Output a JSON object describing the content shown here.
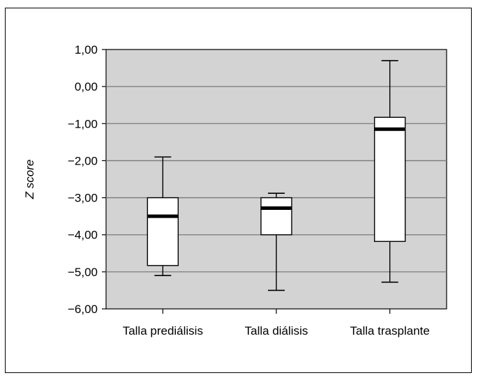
{
  "chart_data": {
    "type": "boxplot",
    "title": "",
    "xlabel": "",
    "ylabel": "Z score",
    "ylim": [
      -6,
      1
    ],
    "yticks": [
      "1,00",
      "0,00",
      "−1,00",
      "−2,00",
      "−3,00",
      "−4,00",
      "−5,00",
      "−6,00"
    ],
    "ytick_values": [
      1,
      0,
      -1,
      -2,
      -3,
      -4,
      -5,
      -6
    ],
    "grid": true,
    "legend": "none",
    "categories": [
      "Talla prediálisis",
      "Talla diálisis",
      "Talla trasplante"
    ],
    "boxes": [
      {
        "category": "Talla prediálisis",
        "whisker_low": -5.1,
        "q1": -4.83,
        "median": -3.5,
        "q3": -3.0,
        "whisker_high": -1.9
      },
      {
        "category": "Talla diálisis",
        "whisker_low": -5.5,
        "q1": -4.0,
        "median": -3.28,
        "q3": -3.0,
        "whisker_high": -2.88
      },
      {
        "category": "Talla trasplante",
        "whisker_low": -5.28,
        "q1": -4.18,
        "median": -1.15,
        "q3": -0.83,
        "whisker_high": 0.7
      }
    ]
  },
  "colors": {
    "plot_background": "#d3d3d3",
    "box_fill": "#ffffff",
    "stroke": "#000000",
    "gridline": "#7a7a7a"
  }
}
